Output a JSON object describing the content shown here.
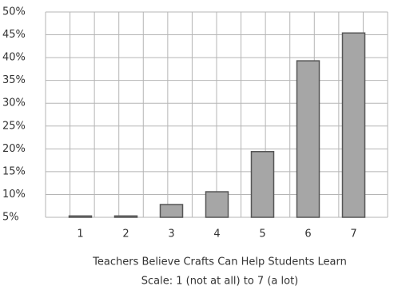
{
  "chart_data": {
    "type": "bar",
    "title": "Teachers Believe Crafts Can Help Students Learn",
    "subtitle": "Scale: 1 (not at all) to 7 (a lot)",
    "categories": [
      "1",
      "2",
      "3",
      "4",
      "5",
      "6",
      "7"
    ],
    "values": [
      5.3,
      5.3,
      7.8,
      10.6,
      19.4,
      39.3,
      45.4
    ],
    "color": "#a6a6a6",
    "ylim": [
      5,
      50
    ],
    "yticks": [
      {
        "value": 5,
        "label": "5%"
      },
      {
        "value": 10,
        "label": "10%"
      },
      {
        "value": 15,
        "label": "15%"
      },
      {
        "value": 20,
        "label": "20%"
      },
      {
        "value": 25,
        "label": "25%"
      },
      {
        "value": 30,
        "label": "30%"
      },
      {
        "value": 35,
        "label": "35%"
      },
      {
        "value": 40,
        "label": "40%"
      },
      {
        "value": 45,
        "label": "45%"
      },
      {
        "value": 50,
        "label": "50%"
      }
    ],
    "grid": true
  }
}
